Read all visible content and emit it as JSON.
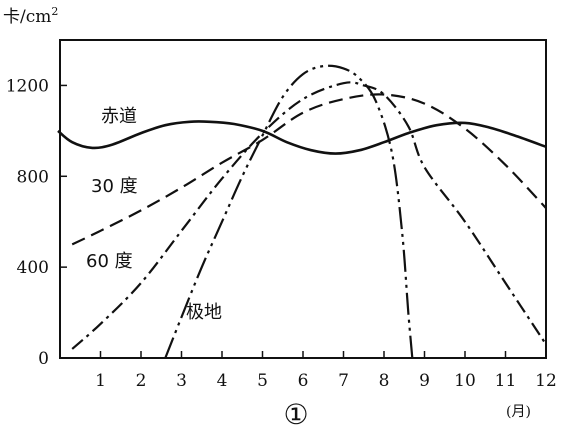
{
  "chart_data": {
    "type": "line",
    "y_unit": "卡/cm²",
    "x_unit": "(月)",
    "figure_number": "①",
    "xlim": [
      0,
      12
    ],
    "ylim": [
      0,
      1400
    ],
    "x_ticks": [
      1,
      2,
      3,
      4,
      5,
      6,
      7,
      8,
      9,
      10,
      11,
      12
    ],
    "y_ticks": [
      0,
      400,
      800,
      1200
    ],
    "y_tick_labels": [
      "0",
      "400",
      "800",
      "1200"
    ],
    "x_tick_labels": [
      "1",
      "2",
      "3",
      "4",
      "5",
      "6",
      "7",
      "8",
      "9",
      "10",
      "11",
      "12"
    ],
    "series": [
      {
        "name": "赤道",
        "style": "solid",
        "points": [
          [
            -0.05,
            1000
          ],
          [
            0.3,
            950
          ],
          [
            0.8,
            925
          ],
          [
            1.3,
            940
          ],
          [
            2,
            990
          ],
          [
            2.6,
            1025
          ],
          [
            3.2,
            1040
          ],
          [
            3.7,
            1040
          ],
          [
            4.3,
            1030
          ],
          [
            5,
            1000
          ],
          [
            5.6,
            950
          ],
          [
            6.2,
            915
          ],
          [
            6.8,
            900
          ],
          [
            7.4,
            915
          ],
          [
            8,
            950
          ],
          [
            8.6,
            990
          ],
          [
            9.3,
            1025
          ],
          [
            10,
            1035
          ],
          [
            10.6,
            1015
          ],
          [
            11.3,
            975
          ],
          [
            12,
            930
          ]
        ]
      },
      {
        "name": "30 度",
        "style": "dashed",
        "points": [
          [
            0.3,
            500
          ],
          [
            1,
            560
          ],
          [
            2,
            650
          ],
          [
            3,
            750
          ],
          [
            4,
            860
          ],
          [
            5,
            960
          ],
          [
            6,
            1080
          ],
          [
            7,
            1140
          ],
          [
            8,
            1160
          ],
          [
            9,
            1120
          ],
          [
            10,
            1010
          ],
          [
            11,
            850
          ],
          [
            12,
            660
          ]
        ]
      },
      {
        "name": "60 度",
        "style": "dashdot",
        "points": [
          [
            0.3,
            40
          ],
          [
            1,
            150
          ],
          [
            2,
            330
          ],
          [
            3,
            560
          ],
          [
            4,
            790
          ],
          [
            5,
            990
          ],
          [
            6,
            1140
          ],
          [
            7,
            1210
          ],
          [
            7.5,
            1200
          ],
          [
            8,
            1160
          ],
          [
            8.6,
            1020
          ],
          [
            9,
            840
          ],
          [
            10,
            600
          ],
          [
            11,
            330
          ],
          [
            12,
            60
          ]
        ]
      },
      {
        "name": "极地",
        "style": "longdashdotdot",
        "points": [
          [
            2.6,
            0
          ],
          [
            3,
            180
          ],
          [
            3.5,
            400
          ],
          [
            4,
            600
          ],
          [
            4.5,
            800
          ],
          [
            5,
            980
          ],
          [
            5.5,
            1150
          ],
          [
            6,
            1250
          ],
          [
            6.5,
            1285
          ],
          [
            7,
            1275
          ],
          [
            7.4,
            1230
          ],
          [
            7.8,
            1130
          ],
          [
            8.2,
            900
          ],
          [
            8.45,
            550
          ],
          [
            8.6,
            200
          ],
          [
            8.7,
            0
          ]
        ]
      }
    ],
    "annotations": [
      "赤道",
      "30 度",
      "60 度",
      "极地"
    ]
  }
}
